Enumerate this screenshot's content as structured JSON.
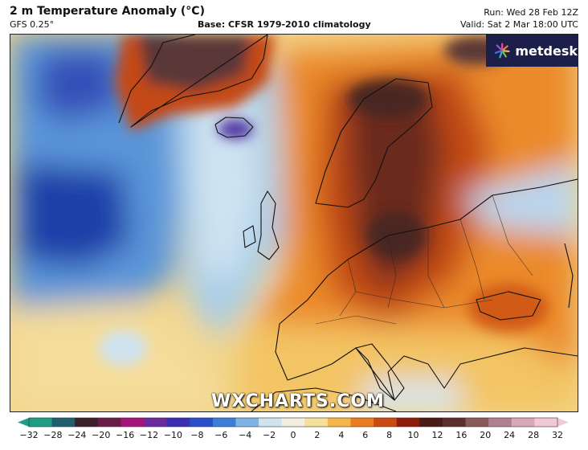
{
  "header": {
    "title": "2 m Temperature Anomaly (°C)",
    "model": "GFS 0.25°",
    "base": "Base: CFSR 1979-2010 climatology",
    "run": "Run: Wed 28 Feb 12Z",
    "valid": "Valid: Sat 2 Mar 18:00 UTC"
  },
  "logo": {
    "text": "metdesk",
    "icon": "starburst-icon"
  },
  "watermark": "WXCHARTS.COM",
  "colorbar": {
    "ticks": [
      "−32",
      "−28",
      "−24",
      "−20",
      "−16",
      "−12",
      "−10",
      "−8",
      "−6",
      "−4",
      "−2",
      "0",
      "2",
      "4",
      "6",
      "8",
      "10",
      "12",
      "16",
      "20",
      "24",
      "28",
      "32"
    ],
    "colors": [
      "#1f9e83",
      "#1f5f70",
      "#3b1f2a",
      "#6b1d4a",
      "#a5157a",
      "#6b2a9e",
      "#3a2fb0",
      "#2a4fc8",
      "#3d7fd6",
      "#7fb3e3",
      "#cfe3f1",
      "#f3efe0",
      "#f5df9a",
      "#f4b54a",
      "#ea7d1f",
      "#cc4a12",
      "#8f1d0c",
      "#4a1a14",
      "#5a3030",
      "#8a5a5a",
      "#b08090",
      "#d7a9b7",
      "#f1c9d4"
    ]
  },
  "map": {
    "palette": {
      "deep_cold": "#1f3fa8",
      "cold": "#4f8fd6",
      "cool": "#a9cde9",
      "neutral": "#f2ecd8",
      "warm": "#f2c56a",
      "hot": "#e8741c",
      "very_hot": "#b23a10",
      "extreme": "#4a2824"
    }
  }
}
